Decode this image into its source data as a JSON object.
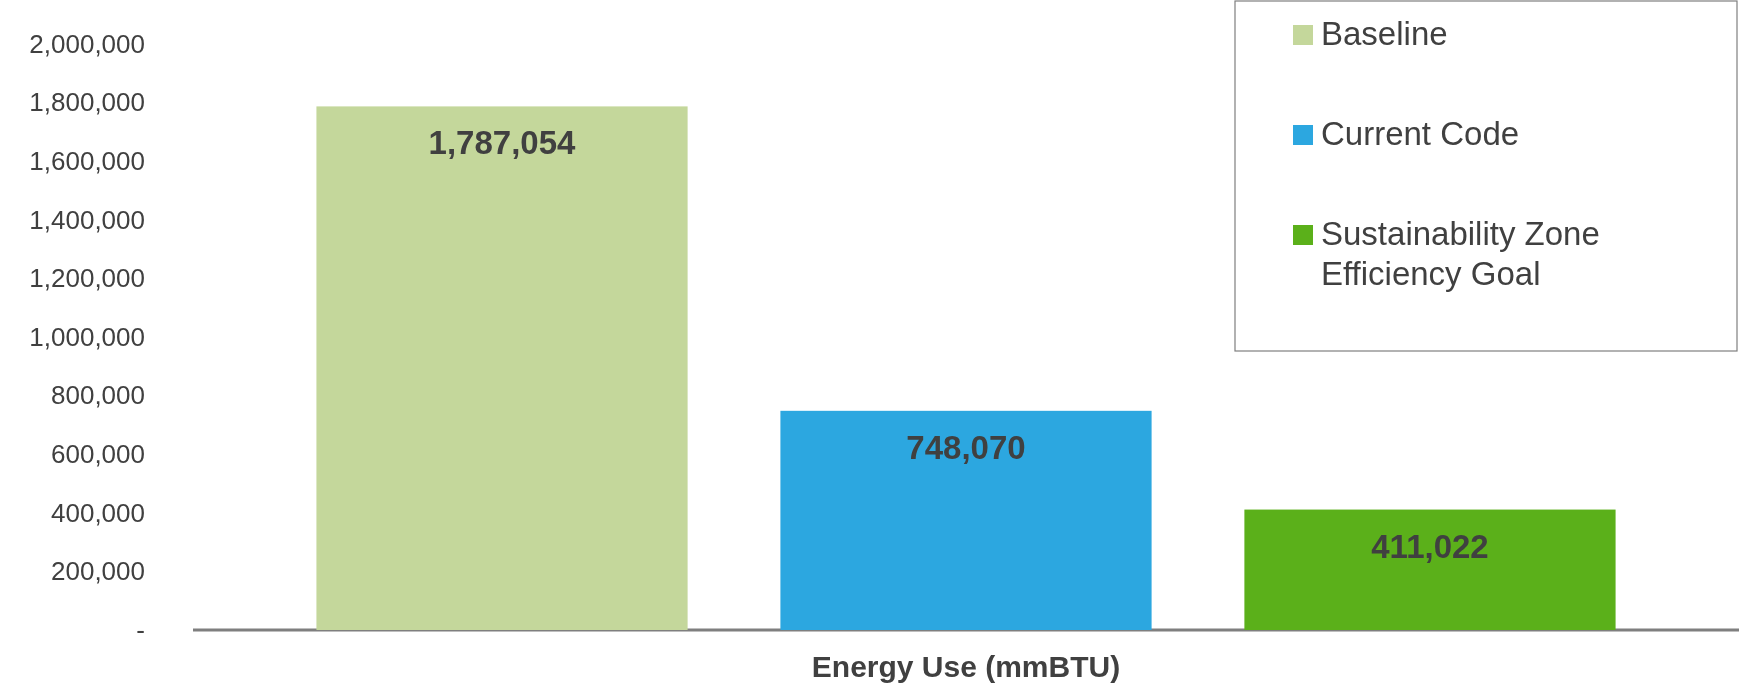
{
  "chart_data": {
    "type": "bar",
    "categories": [
      "Energy Use (mmBTU)"
    ],
    "series": [
      {
        "name": "Baseline",
        "color": "#c4d79b",
        "values": [
          1787054
        ],
        "value_labels": [
          "1,787,054"
        ]
      },
      {
        "name": "Current Code",
        "color": "#2ca7e0",
        "values": [
          748070
        ],
        "value_labels": [
          "748,070"
        ]
      },
      {
        "name": "Sustainability Zone Efficiency Goal",
        "color": "#5bb01a",
        "values": [
          411022
        ],
        "value_labels": [
          "411,022"
        ]
      }
    ],
    "ylim": [
      0,
      2000000
    ],
    "yticks": [
      {
        "value": 0,
        "label": "-"
      },
      {
        "value": 200000,
        "label": "200,000"
      },
      {
        "value": 400000,
        "label": "400,000"
      },
      {
        "value": 600000,
        "label": "600,000"
      },
      {
        "value": 800000,
        "label": "800,000"
      },
      {
        "value": 1000000,
        "label": "1,000,000"
      },
      {
        "value": 1200000,
        "label": "1,200,000"
      },
      {
        "value": 1400000,
        "label": "1,400,000"
      },
      {
        "value": 1600000,
        "label": "1,600,000"
      },
      {
        "value": 1800000,
        "label": "1,800,000"
      },
      {
        "value": 2000000,
        "label": "2,000,000"
      }
    ],
    "legend": "top right",
    "grid": false
  }
}
